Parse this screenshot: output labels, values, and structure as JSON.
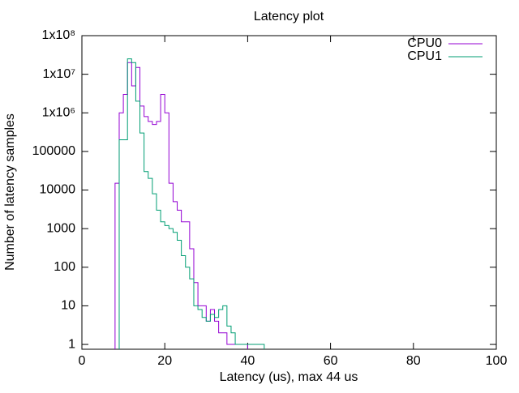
{
  "chart_data": {
    "type": "line",
    "step": true,
    "title": "Latency plot",
    "x_label": "Latency (us), max 44 us",
    "y_label": "Number of latency samples",
    "log_y": true,
    "legend": "top-right",
    "xlim": [
      0,
      100
    ],
    "xticks": [
      0,
      20,
      40,
      60,
      80,
      100
    ],
    "ylim": [
      0.75,
      100000000
    ],
    "yticks": [
      1,
      10,
      100,
      1000,
      10000,
      100000,
      {
        "value": 1000000,
        "label": "1x10⁶"
      },
      {
        "value": 10000000,
        "label": "1x10⁷"
      },
      {
        "value": 100000000,
        "label": "1x10⁸"
      }
    ],
    "x": [
      8,
      9,
      10,
      11,
      12,
      13,
      14,
      15,
      16,
      17,
      18,
      19,
      20,
      21,
      22,
      23,
      24,
      25,
      26,
      27,
      28,
      29,
      30,
      31,
      32,
      33,
      34,
      35,
      36,
      37,
      38,
      39,
      40,
      41,
      42,
      43
    ],
    "series": [
      {
        "name": "CPU0",
        "color": "#9400d3",
        "values": [
          15000,
          1000000,
          3000000,
          20000000,
          5000000,
          15000000,
          1500000,
          800000,
          600000,
          500000,
          600000,
          3000000,
          1000000,
          15000,
          5000,
          3000,
          1500,
          1500,
          300,
          40,
          10,
          10,
          4,
          8,
          4,
          2,
          2,
          1,
          1,
          1,
          1,
          1,
          null,
          null,
          null,
          null
        ]
      },
      {
        "name": "CPU1",
        "color": "#009e73",
        "values": [
          null,
          200000,
          200000,
          25000000,
          20000000,
          2000000,
          300000,
          30000,
          20000,
          8000,
          3000,
          1500,
          1200,
          1000,
          800,
          500,
          200,
          100,
          50,
          10,
          8,
          5,
          4,
          6,
          5,
          8,
          10,
          3,
          2,
          1,
          1,
          1,
          1,
          1,
          1,
          1
        ]
      }
    ]
  }
}
